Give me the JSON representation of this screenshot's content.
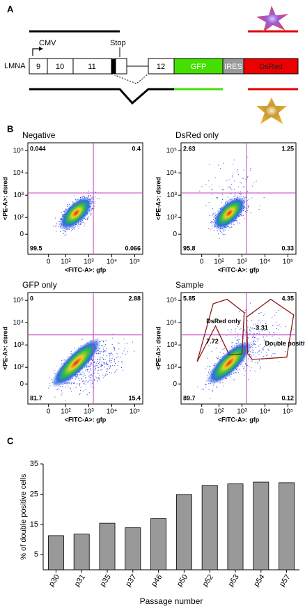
{
  "panel_a": {
    "label": "A",
    "promoter": "CMV",
    "stop": "Stop",
    "gene": "LMNA",
    "exons": [
      "9",
      "10",
      "11",
      "12"
    ],
    "elements": [
      "GFP",
      "IRES",
      "DsRed"
    ]
  },
  "panel_b": {
    "label": "B",
    "y_axis_label": "<PE-A>: dsred",
    "x_axis_label": "<FITC-A>: gfp",
    "ticks": [
      0,
      {
        "value": 100,
        "label": "10²"
      },
      {
        "value": 1000,
        "label": "10³"
      },
      {
        "value": 10000,
        "label": "10⁴"
      },
      {
        "value": 100000,
        "label": "10⁵"
      }
    ],
    "plots": [
      {
        "title": "Negative",
        "quadrants": [
          "0.044",
          "0.4",
          "99.5",
          "0.066"
        ]
      },
      {
        "title": "DsRed only",
        "quadrants": [
          "2.63",
          "1.25",
          "95.8",
          "0.33"
        ]
      },
      {
        "title": "GFP only",
        "quadrants": [
          "0",
          "2.88",
          "81.7",
          "15.4"
        ]
      },
      {
        "title": "Sample",
        "quadrants": [
          "5.85",
          "4.35",
          "89.7",
          "0.12"
        ],
        "gates": [
          {
            "label": "DsRed only",
            "value": "7.72"
          },
          {
            "label": "Double positive",
            "value": "3.31"
          }
        ]
      }
    ]
  },
  "chart_data": {
    "label": "C",
    "type": "bar",
    "categories": [
      "p30",
      "p31",
      "p35",
      "p37",
      "p46",
      "p50",
      "p52",
      "p53",
      "p54",
      "p57"
    ],
    "values": [
      11.3,
      11.8,
      15.4,
      13.9,
      16.9,
      24.9,
      27.9,
      28.4,
      29.0,
      28.8
    ],
    "color": "#999999",
    "ylim": [
      0,
      35
    ],
    "yticks": [
      5,
      15,
      25,
      35
    ],
    "x_label": "Passage number",
    "y_label": "% of double positive cells"
  }
}
